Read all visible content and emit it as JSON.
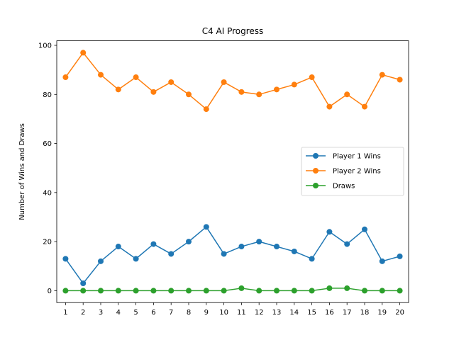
{
  "chart_data": {
    "type": "line",
    "title": "C4 AI Progress",
    "xlabel": "",
    "ylabel": "Number of Wins and Draws",
    "x": [
      1,
      2,
      3,
      4,
      5,
      6,
      7,
      8,
      9,
      10,
      11,
      12,
      13,
      14,
      15,
      16,
      17,
      18,
      19,
      20
    ],
    "xticks": [
      "1",
      "2",
      "3",
      "4",
      "5",
      "6",
      "7",
      "8",
      "9",
      "10",
      "11",
      "12",
      "13",
      "14",
      "15",
      "16",
      "17",
      "18",
      "19",
      "20"
    ],
    "yticks": [
      "0",
      "20",
      "40",
      "60",
      "80",
      "100"
    ],
    "xlim": [
      0.5,
      20.5
    ],
    "ylim": [
      -4.85,
      101.85
    ],
    "grid": false,
    "legend_position": "center-right",
    "series": [
      {
        "name": "Player 1 Wins",
        "color": "#1f77b4",
        "values": [
          13,
          3,
          12,
          18,
          13,
          19,
          15,
          20,
          26,
          15,
          18,
          20,
          18,
          16,
          13,
          24,
          19,
          25,
          12,
          14
        ]
      },
      {
        "name": "Player 2 Wins",
        "color": "#ff7f0e",
        "values": [
          87,
          97,
          88,
          82,
          87,
          81,
          85,
          80,
          74,
          85,
          81,
          80,
          82,
          84,
          87,
          75,
          80,
          75,
          88,
          86
        ]
      },
      {
        "name": "Draws",
        "color": "#2ca02c",
        "values": [
          0,
          0,
          0,
          0,
          0,
          0,
          0,
          0,
          0,
          0,
          1,
          0,
          0,
          0,
          0,
          1,
          1,
          0,
          0,
          0
        ]
      }
    ]
  }
}
